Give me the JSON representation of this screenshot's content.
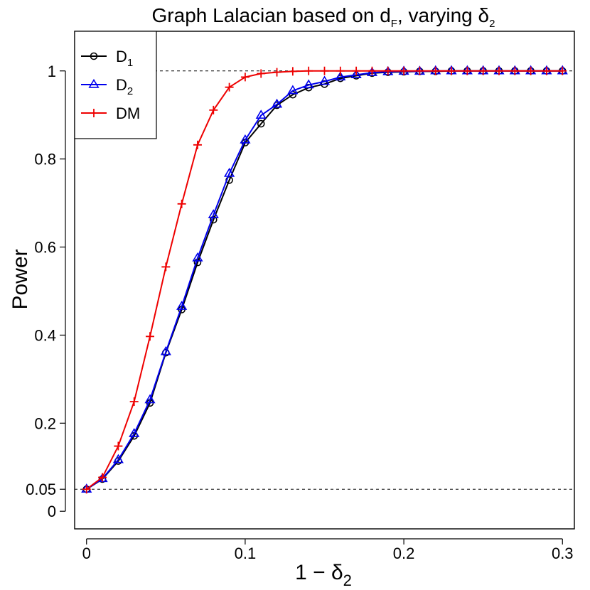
{
  "chart_data": {
    "type": "line",
    "title": {
      "text": "Graph Lalacian based on d",
      "sub": "F",
      "rest": ", varying δ",
      "sub2": "2"
    },
    "xlabel": {
      "text": "1 − δ",
      "sub": "2"
    },
    "ylabel": "Power",
    "xlim": [
      -0.0075,
      0.3075
    ],
    "ylim": [
      -0.04,
      1.09
    ],
    "xticks": [
      0,
      0.1,
      0.2,
      0.3
    ],
    "xtick_labels": [
      "0",
      "0.1",
      "0.2",
      "0.3"
    ],
    "yticks": [
      0,
      0.05,
      0.2,
      0.4,
      0.6,
      0.8,
      1
    ],
    "ytick_labels": [
      "0",
      "0.05",
      "0.2",
      "0.4",
      "0.6",
      "0.8",
      "1"
    ],
    "reference_lines": [
      0.05,
      1
    ],
    "x": [
      0,
      0.01,
      0.02,
      0.03,
      0.04,
      0.05,
      0.06,
      0.07,
      0.08,
      0.09,
      0.1,
      0.11,
      0.12,
      0.13,
      0.14,
      0.15,
      0.16,
      0.17,
      0.18,
      0.19,
      0.2,
      0.21,
      0.22,
      0.23,
      0.24,
      0.25,
      0.26,
      0.27,
      0.28,
      0.29,
      0.3
    ],
    "series": [
      {
        "name": "D1",
        "label": "D",
        "label_sub": "1",
        "color": "#000000",
        "marker": "circle",
        "values": [
          0.05,
          0.073,
          0.114,
          0.171,
          0.246,
          0.36,
          0.458,
          0.565,
          0.662,
          0.752,
          0.837,
          0.88,
          0.922,
          0.946,
          0.962,
          0.97,
          0.983,
          0.989,
          0.995,
          0.997,
          0.998,
          0.999,
          0.999,
          1.0,
          1.0,
          1.0,
          1.0,
          1.0,
          1.0,
          1.0,
          1.0
        ]
      },
      {
        "name": "D2",
        "label": "D",
        "label_sub": "2",
        "color": "#0000ee",
        "marker": "triangle",
        "values": [
          0.05,
          0.074,
          0.117,
          0.176,
          0.253,
          0.362,
          0.465,
          0.575,
          0.673,
          0.767,
          0.843,
          0.899,
          0.924,
          0.955,
          0.968,
          0.976,
          0.986,
          0.991,
          0.996,
          0.998,
          0.999,
          0.999,
          1.0,
          1.0,
          1.0,
          1.0,
          1.0,
          1.0,
          1.0,
          1.0,
          1.0
        ]
      },
      {
        "name": "DM",
        "label": "DM",
        "label_sub": "",
        "color": "#ee0000",
        "marker": "plus",
        "values": [
          0.05,
          0.077,
          0.148,
          0.249,
          0.397,
          0.555,
          0.698,
          0.832,
          0.911,
          0.963,
          0.986,
          0.994,
          0.997,
          0.999,
          1.0,
          1.0,
          1.0,
          1.0,
          1.0,
          1.0,
          1.0,
          1.0,
          1.0,
          1.0,
          1.0,
          1.0,
          1.0,
          1.0,
          1.0,
          1.0,
          1.0
        ]
      }
    ],
    "legend": {
      "position": "top-left"
    },
    "grid": false
  }
}
